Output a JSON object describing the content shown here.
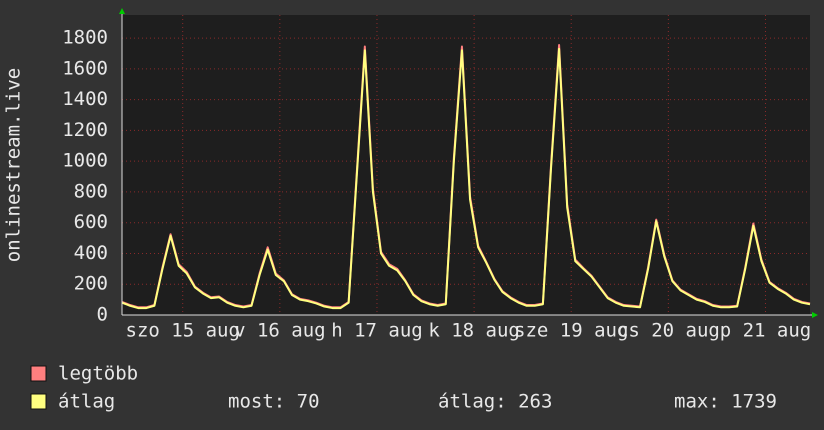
{
  "chart_data": {
    "type": "line",
    "ylabel": "onlinestream.live",
    "x": [
      0,
      2,
      4,
      6,
      8,
      10,
      12,
      14,
      16,
      18,
      20,
      22,
      24,
      26,
      28,
      30,
      32,
      34,
      36,
      38,
      40,
      42,
      44,
      46,
      48,
      50,
      52,
      54,
      56,
      58,
      60,
      62,
      64,
      66,
      68,
      70,
      72,
      74,
      76,
      78,
      80,
      82,
      84,
      86,
      88,
      90,
      92,
      94,
      96,
      98,
      100,
      102,
      104,
      106,
      108,
      110,
      112,
      114,
      116,
      118,
      120,
      122,
      124,
      126,
      128,
      130,
      132,
      134,
      136,
      138,
      140,
      142,
      144,
      146,
      148,
      150,
      152,
      154,
      156,
      158,
      160,
      162,
      164,
      166,
      168,
      170
    ],
    "series": [
      {
        "name": "legtöbb",
        "color": "#ff7f7f",
        "values": [
          85,
          65,
          50,
          50,
          65,
          310,
          525,
          330,
          280,
          185,
          145,
          115,
          120,
          85,
          65,
          55,
          65,
          270,
          440,
          270,
          225,
          135,
          105,
          95,
          80,
          60,
          50,
          50,
          85,
          920,
          1745,
          820,
          410,
          330,
          300,
          225,
          135,
          95,
          75,
          65,
          75,
          1020,
          1745,
          770,
          450,
          345,
          235,
          155,
          115,
          85,
          65,
          65,
          75,
          970,
          1755,
          720,
          360,
          305,
          255,
          185,
          115,
          85,
          65,
          60,
          55,
          310,
          620,
          390,
          225,
          165,
          135,
          105,
          90,
          65,
          55,
          55,
          60,
          310,
          595,
          360,
          215,
          175,
          145,
          105,
          85,
          75
        ]
      },
      {
        "name": "átlag",
        "color": "#ffff80",
        "values": [
          80,
          60,
          45,
          45,
          60,
          300,
          515,
          320,
          270,
          180,
          140,
          110,
          115,
          80,
          60,
          50,
          60,
          260,
          425,
          260,
          220,
          130,
          100,
          90,
          75,
          55,
          45,
          45,
          80,
          900,
          1720,
          800,
          400,
          320,
          290,
          220,
          130,
          90,
          70,
          60,
          70,
          1000,
          1720,
          750,
          440,
          340,
          230,
          150,
          110,
          80,
          60,
          60,
          70,
          950,
          1730,
          700,
          350,
          300,
          250,
          180,
          110,
          80,
          60,
          55,
          50,
          300,
          610,
          380,
          220,
          160,
          130,
          100,
          85,
          60,
          50,
          50,
          55,
          300,
          580,
          350,
          210,
          170,
          140,
          100,
          80,
          70
        ]
      }
    ],
    "xlim": [
      0,
      170
    ],
    "xticks": [
      {
        "value": 15,
        "label": "szo 15 aug"
      },
      {
        "value": 39,
        "label": "v 16 aug"
      },
      {
        "value": 63,
        "label": "h 17 aug"
      },
      {
        "value": 87,
        "label": "k 18 aug"
      },
      {
        "value": 111,
        "label": "sze 19 aug"
      },
      {
        "value": 135,
        "label": "cs 20 aug"
      },
      {
        "value": 159,
        "label": "p 21 aug"
      }
    ],
    "ylim": [
      0,
      1950
    ],
    "yticks": [
      0,
      200,
      400,
      600,
      800,
      1000,
      1200,
      1400,
      1600,
      1800
    ],
    "grid": true,
    "stats": [
      "most: 70",
      "átlag: 263",
      "max: 1739"
    ]
  }
}
